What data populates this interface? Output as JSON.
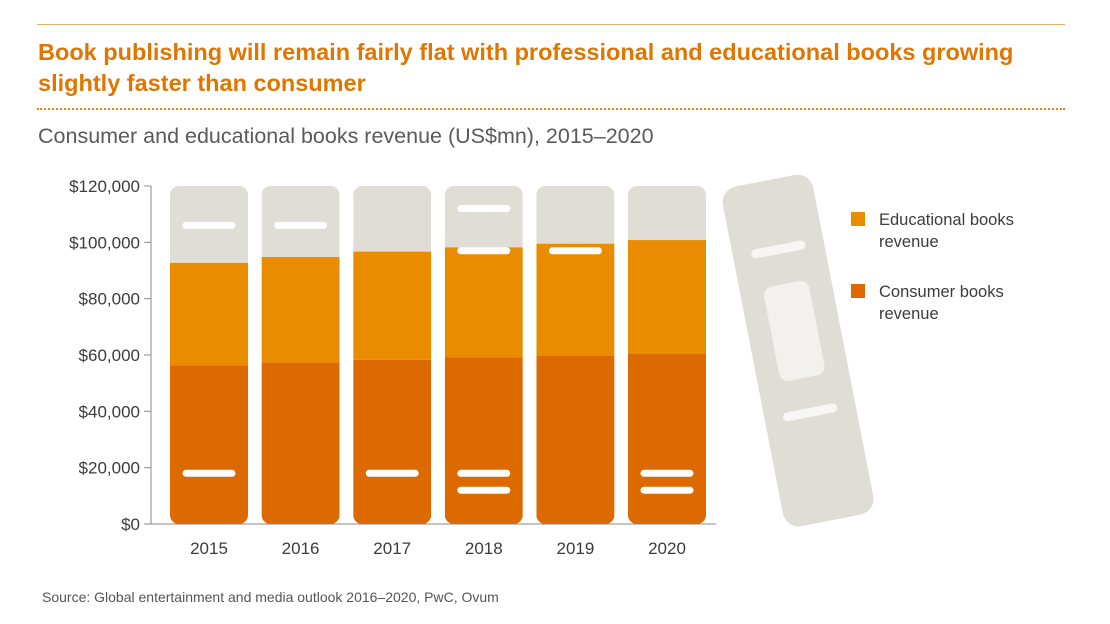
{
  "colors": {
    "accent": "#de6b00",
    "educational": "#e98c00",
    "consumer": "#dd6a00",
    "book_top": "#e0ddd6",
    "title": "#e07600",
    "rule": "#d98a1a"
  },
  "title": "Book publishing will remain fairly flat with professional and educational books growing slightly faster than consumer",
  "subtitle": "Consumer and educational books revenue (US$mn), 2015–2020",
  "source": "Source: Global entertainment and media outlook 2016–2020, PwC, Ovum",
  "chart_data": {
    "type": "bar",
    "stacked": true,
    "categories": [
      "2015",
      "2016",
      "2017",
      "2018",
      "2019",
      "2020"
    ],
    "series": [
      {
        "name": "Consumer books revenue",
        "legend_lines": [
          "Consumer books",
          "revenue"
        ],
        "color": "#dd6a00",
        "values": [
          56300,
          57300,
          58300,
          59100,
          59800,
          60500
        ]
      },
      {
        "name": "Educational books revenue",
        "legend_lines": [
          "Educational books",
          "revenue"
        ],
        "color": "#e98c00",
        "values": [
          36400,
          37500,
          38400,
          39100,
          39700,
          40300
        ]
      }
    ],
    "ylim": [
      0,
      120000
    ],
    "yticks": [
      0,
      20000,
      40000,
      60000,
      80000,
      100000,
      120000
    ],
    "ytick_labels": [
      "$0",
      "$20,000",
      "$40,000",
      "$60,000",
      "$80,000",
      "$100,000",
      "$120,000"
    ],
    "xlabel": "",
    "ylabel": "",
    "legend_position": "right",
    "grid": false
  }
}
